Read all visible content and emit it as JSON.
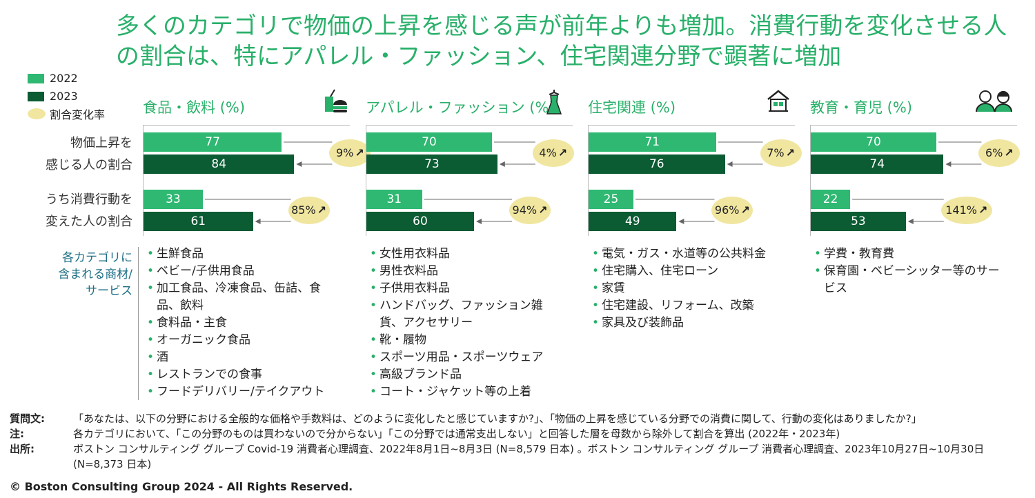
{
  "title": "多くのカテゴリで物価の上昇を感じる声が前年よりも増加。消費行動を変化させる人の割合は、特にアパレル・ファッション、住宅関連分野で顕著に増加",
  "legend": {
    "y2022": "2022",
    "y2023": "2023",
    "rate": "割合変化率"
  },
  "row_labels": {
    "row1_line1": "物価上昇を",
    "row1_line2": "感じる人の割合",
    "row2_line1": "うち消費行動を",
    "row2_line2": "変えた人の割合"
  },
  "items_label": {
    "l1": "各カテゴリに",
    "l2": "含まれる商材/",
    "l3": "サービス"
  },
  "colors": {
    "bar_2022": "#2eb872",
    "bar_2023": "#0b5b33",
    "ellipse": "#f0e6a0",
    "title_green": "#29b06a"
  },
  "chart_data": {
    "type": "bar",
    "orientation": "horizontal",
    "series": [
      {
        "name": "2022"
      },
      {
        "name": "2023"
      }
    ],
    "categories": [
      {
        "name": "食品・飲料 (%)",
        "icon": "food-drink-icon",
        "price_rise": {
          "v2022": 77,
          "v2023": 84,
          "change": "9%"
        },
        "behavior_change": {
          "v2022": 33,
          "v2023": 61,
          "change": "85%"
        },
        "items": [
          "生鮮食品",
          "ベビー/子供用食品",
          "加工食品、冷凍食品、缶詰、食品、飲料",
          "食料品・主食",
          "オーガニック食品",
          "酒",
          "レストランでの食事",
          "フードデリバリー/テイクアウト"
        ]
      },
      {
        "name": "アパレル・ファッション (%)",
        "icon": "dress-icon",
        "price_rise": {
          "v2022": 70,
          "v2023": 73,
          "change": "4%"
        },
        "behavior_change": {
          "v2022": 31,
          "v2023": 60,
          "change": "94%"
        },
        "items": [
          "女性用衣料品",
          "男性衣料品",
          "子供用衣料品",
          "ハンドバッグ、ファッション雑貨、アクセサリー",
          "靴・履物",
          "スポーツ用品・スポーツウェア",
          "高級ブランド品",
          "コート・ジャケット等の上着"
        ]
      },
      {
        "name": "住宅関連 (%)",
        "icon": "house-icon",
        "price_rise": {
          "v2022": 71,
          "v2023": 76,
          "change": "7%"
        },
        "behavior_change": {
          "v2022": 25,
          "v2023": 49,
          "change": "96%"
        },
        "items": [
          "電気・ガス・水道等の公共料金",
          "住宅購入、住宅ローン",
          "家賃",
          "住宅建設、リフォーム、改築",
          "家具及び装飾品"
        ]
      },
      {
        "name": "教育・育児 (%)",
        "icon": "parent-child-icon",
        "price_rise": {
          "v2022": 70,
          "v2023": 74,
          "change": "6%"
        },
        "behavior_change": {
          "v2022": 22,
          "v2023": 53,
          "change": "141%"
        },
        "items": [
          "学費・教育費",
          "保育園・ベビーシッター等のサービス"
        ]
      }
    ]
  },
  "notes": {
    "question_label": "質問文:",
    "question_text": "「あなたは、以下の分野における全般的な価格や手数料は、どのように変化したと感じていますか?」、「物価の上昇を感じている分野での消費に関して、行動の変化はありましたか?」",
    "note_label": "注:",
    "note_text": "各カテゴリにおいて、「この分野のものは買わないので分からない」「この分野では通常支出しない」と回答した層を母数から除外して割合を算出 (2022年・2023年)",
    "source_label": "出所:",
    "source_text": "ボストン コンサルティング グループ Covid-19 消費者心理調査、2022年8月1日~8月3日 (N=8,579 日本) 。ボストン コンサルティング グループ 消費者心理調査、2023年10月27日~10月30日 (N=8,373 日本)"
  },
  "copyright": "© Boston Consulting Group 2024 - All Rights Reserved."
}
